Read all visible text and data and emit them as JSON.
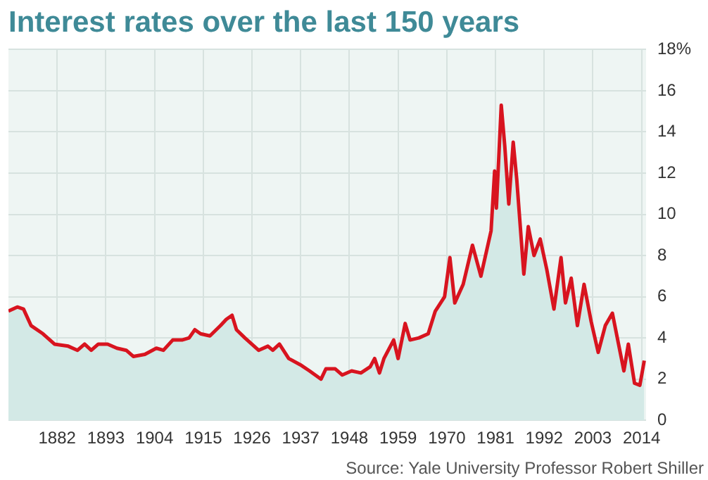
{
  "chart_data": {
    "type": "area",
    "title": "Interest rates over the last 150 years",
    "x": [
      1871,
      1873,
      1874.4,
      1876.1,
      1878.8,
      1881.4,
      1884.5,
      1886.6,
      1888.2,
      1889.7,
      1891.3,
      1893.4,
      1895.5,
      1897.6,
      1899.2,
      1901.8,
      1904.4,
      1906,
      1908.1,
      1910.2,
      1911.8,
      1913.1,
      1914.4,
      1916.5,
      1918.9,
      1920.2,
      1921.5,
      1922.5,
      1924.4,
      1927.5,
      1929.6,
      1930.7,
      1932.2,
      1934.3,
      1936.9,
      1939,
      1941.6,
      1942.7,
      1944.8,
      1946.4,
      1948.5,
      1950.6,
      1952.7,
      1953.7,
      1954.8,
      1955.8,
      1958,
      1959,
      1960.6,
      1961.7,
      1963.7,
      1965.8,
      1967.4,
      1969.5,
      1970.7,
      1971.8,
      1973.7,
      1975.8,
      1977.7,
      1980,
      1980.8,
      1981.2,
      1982.3,
      1983.1,
      1984,
      1985,
      1985.8,
      1987.4,
      1988.4,
      1989.7,
      1991.1,
      1992.6,
      1994.2,
      1995.8,
      1996.8,
      1998.1,
      1999.5,
      2001,
      2002.6,
      2004.2,
      2005.8,
      2007.4,
      2008.6,
      2010,
      2011,
      2012.4,
      2013.6,
      2014.6
    ],
    "series": [
      {
        "color": "#d8141f",
        "values": [
          5.3,
          5.5,
          5.4,
          4.6,
          4.2,
          3.7,
          3.6,
          3.4,
          3.7,
          3.4,
          3.7,
          3.7,
          3.5,
          3.4,
          3.1,
          3.2,
          3.5,
          3.4,
          3.9,
          3.9,
          4.0,
          4.4,
          4.2,
          4.1,
          4.6,
          4.9,
          5.1,
          4.4,
          4.0,
          3.4,
          3.6,
          3.4,
          3.7,
          3.0,
          2.7,
          2.4,
          2.0,
          2.5,
          2.5,
          2.2,
          2.4,
          2.3,
          2.6,
          3.0,
          2.3,
          3.0,
          3.9,
          3.0,
          4.7,
          3.9,
          4.0,
          4.2,
          5.3,
          6.0,
          7.9,
          5.7,
          6.6,
          8.5,
          7.0,
          9.2,
          12.1,
          10.3,
          15.3,
          13.3,
          10.5,
          13.5,
          11.7,
          7.1,
          9.4,
          8.0,
          8.8,
          7.3,
          5.4,
          7.9,
          5.7,
          6.9,
          4.6,
          6.6,
          4.8,
          3.3,
          4.6,
          5.2,
          3.9,
          2.4,
          3.7,
          1.8,
          1.7,
          2.9
        ]
      }
    ],
    "xlim": [
      1871,
      2015
    ],
    "xticks": [
      1882,
      1893,
      1904,
      1915,
      1926,
      1937,
      1948,
      1959,
      1970,
      1981,
      1992,
      2003,
      2014
    ],
    "ylim": [
      0,
      18
    ],
    "yticks": [
      0,
      2,
      4,
      6,
      8,
      10,
      12,
      14,
      16,
      {
        "value": 18,
        "label": "18%"
      }
    ],
    "grid": true,
    "annotations": [
      "Source: Yale University Professor Robert Shiller"
    ]
  }
}
